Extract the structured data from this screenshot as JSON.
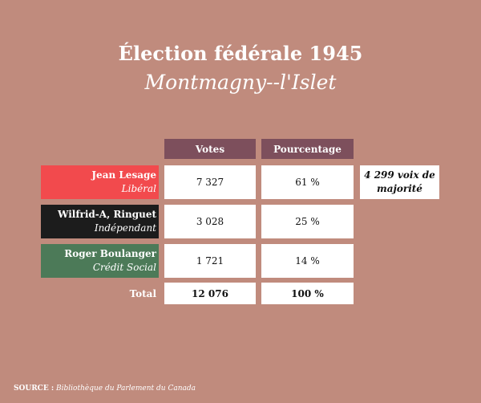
{
  "title": "Élection fédérale 1945",
  "subtitle": "Montmagny--l'Islet",
  "headers": {
    "votes": "Votes",
    "percentage": "Pourcentage"
  },
  "candidates": [
    {
      "name": "Jean Lesage",
      "party": "Libéral",
      "votes": "7 327",
      "percentage": "61 %",
      "color": "#f24a4d"
    },
    {
      "name": "Wilfrid-A, Ringuet",
      "party": "Indépendant",
      "votes": "3 028",
      "percentage": "25 %",
      "color": "#1c1c1c"
    },
    {
      "name": "Roger Boulanger",
      "party": "Crédit Social",
      "votes": "1 721",
      "percentage": "14 %",
      "color": "#4c7a58"
    }
  ],
  "majority_note": "4 299 voix de majorité",
  "total": {
    "label": "Total",
    "votes": "12 076",
    "percentage": "100 %"
  },
  "source": {
    "label": "SOURCE :",
    "text": "Bibliothèque du Parlement du Canada"
  },
  "colors": {
    "background": "#c08b7d",
    "header": "#7d4f5c"
  }
}
